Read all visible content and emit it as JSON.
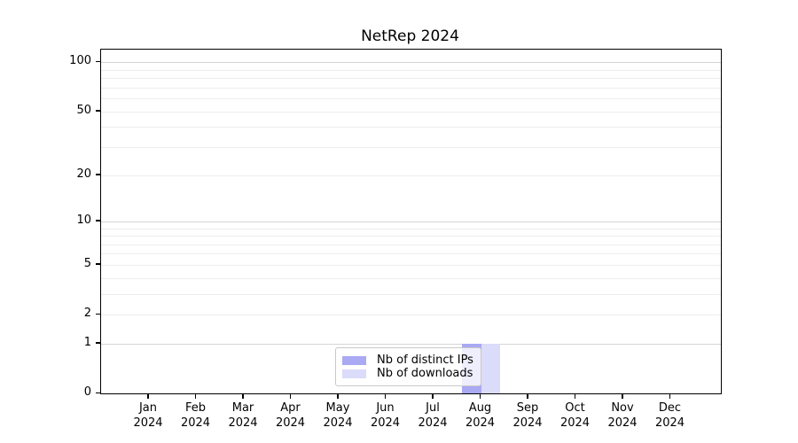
{
  "title": "NetRep 2024",
  "chart_data": {
    "type": "bar",
    "title": "NetRep 2024",
    "categories": [
      "Jan 2024",
      "Feb 2024",
      "Mar 2024",
      "Apr 2024",
      "May 2024",
      "Jun 2024",
      "Jul 2024",
      "Aug 2024",
      "Sep 2024",
      "Oct 2024",
      "Nov 2024",
      "Dec 2024"
    ],
    "series": [
      {
        "name": "Nb of distinct IPs",
        "color": "#a9a9f4",
        "values": [
          0,
          0,
          0,
          0,
          0,
          0,
          0,
          1,
          0,
          0,
          0,
          0
        ]
      },
      {
        "name": "Nb of downloads",
        "color": "#dbdbfa",
        "values": [
          0,
          0,
          0,
          0,
          0,
          0,
          0,
          1,
          0,
          0,
          0,
          0
        ]
      }
    ],
    "yscale": "log1p",
    "ylim": [
      0,
      120
    ],
    "ytick_values": [
      100,
      50,
      20,
      10,
      5,
      2,
      1,
      0
    ],
    "grid": {
      "major_values": [
        100,
        10,
        1
      ],
      "minor_values": [
        90,
        80,
        70,
        60,
        50,
        40,
        30,
        20,
        9,
        8,
        7,
        6,
        5,
        4,
        3,
        2
      ],
      "major_color": "#d4d4d4",
      "minor_color": "#ededed"
    },
    "legend": {
      "position": "inside lower center",
      "entries": [
        "Nb of distinct IPs",
        "Nb of downloads"
      ]
    },
    "xlabel": "",
    "ylabel": ""
  },
  "colors": {
    "spine": "#000000",
    "text": "#000000",
    "background": "#ffffff"
  }
}
